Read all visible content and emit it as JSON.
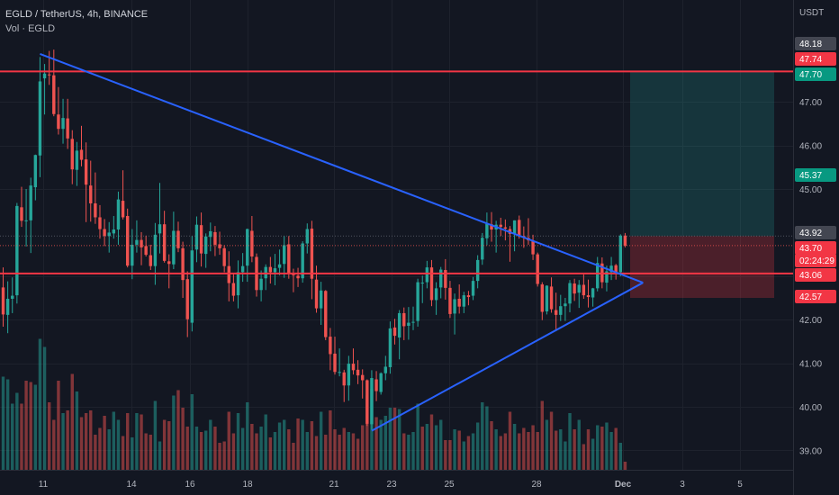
{
  "header": {
    "title": "EGLD / TetherUS, 4h, BINANCE",
    "volume_label": "Vol · EGLD"
  },
  "colors": {
    "background": "#131722",
    "up": "#26a69a",
    "down": "#ef5350",
    "trendline": "#2962ff",
    "level": "#f23645",
    "grid": "#1e222d",
    "axis_text": "#b2b5be"
  },
  "chart_data": {
    "type": "candlestick",
    "currency": "USDT",
    "y_ticks": [
      "39.00",
      "40.00",
      "41.00",
      "42.00",
      "43.00",
      "45.00",
      "46.00",
      "47.00"
    ],
    "x_ticks": [
      "11",
      "14",
      "16",
      "18",
      "21",
      "23",
      "25",
      "28",
      "Dec",
      "3",
      "5"
    ],
    "price_labels": [
      {
        "value": "48.18",
        "style": "gray"
      },
      {
        "value": "47.74",
        "style": "red"
      },
      {
        "value": "47.70",
        "style": "green"
      },
      {
        "value": "45.37",
        "style": "green"
      },
      {
        "value": "43.92",
        "style": "gray"
      },
      {
        "value": "43.70",
        "style": "red"
      },
      {
        "value": "02:24:29",
        "style": "red"
      },
      {
        "value": "43.06",
        "style": "red"
      },
      {
        "value": "42.57",
        "style": "red"
      }
    ],
    "horizontal_levels": [
      47.7,
      43.06
    ],
    "triangle": {
      "upper_start": {
        "date": "Nov 11",
        "price": 48.1
      },
      "lower_start": {
        "date": "Nov 22",
        "price": 39.45
      },
      "apex": {
        "date": "Dec 1",
        "price": 42.85
      }
    },
    "position": {
      "entry": 43.92,
      "target": 47.7,
      "stop": 42.5
    },
    "ohlc": [
      [
        42.74,
        43.2,
        41.84,
        42.12
      ],
      [
        42.11,
        42.88,
        41.69,
        42.48
      ],
      [
        42.48,
        42.97,
        42.15,
        42.55
      ],
      [
        42.56,
        44.68,
        42.37,
        44.61
      ],
      [
        44.58,
        45.05,
        44.13,
        44.27
      ],
      [
        44.26,
        45.0,
        43.68,
        44.28
      ],
      [
        44.28,
        45.26,
        43.53,
        45.08
      ],
      [
        45.04,
        45.79,
        44.74,
        45.78
      ],
      [
        45.77,
        48.03,
        45.27,
        47.47
      ],
      [
        47.54,
        47.87,
        46.71,
        47.65
      ],
      [
        47.63,
        48.17,
        47.39,
        47.61
      ],
      [
        47.61,
        48.2,
        46.67,
        46.72
      ],
      [
        46.71,
        47.34,
        46.25,
        46.38
      ],
      [
        46.38,
        47.07,
        46.04,
        46.63
      ],
      [
        46.62,
        47.07,
        45.92,
        46.16
      ],
      [
        46.15,
        46.35,
        45.11,
        45.45
      ],
      [
        45.44,
        46.08,
        45.07,
        45.88
      ],
      [
        45.9,
        46.45,
        45.52,
        45.67
      ],
      [
        45.68,
        46.07,
        44.24,
        45.1
      ],
      [
        45.08,
        45.65,
        44.25,
        44.67
      ],
      [
        44.67,
        45.38,
        44.2,
        44.35
      ],
      [
        44.35,
        44.63,
        43.86,
        44.08
      ],
      [
        44.08,
        44.31,
        43.69,
        43.92
      ],
      [
        43.92,
        44.24,
        43.54,
        44.0
      ],
      [
        43.98,
        44.38,
        43.86,
        44.07
      ],
      [
        44.07,
        44.94,
        43.72,
        44.76
      ],
      [
        44.73,
        45.43,
        44.3,
        44.35
      ],
      [
        44.38,
        44.55,
        43.2,
        43.24
      ],
      [
        43.24,
        44.08,
        42.93,
        43.72
      ],
      [
        43.72,
        44.28,
        43.54,
        43.83
      ],
      [
        43.83,
        44.01,
        43.25,
        43.66
      ],
      [
        43.69,
        43.93,
        43.45,
        43.49
      ],
      [
        43.48,
        43.72,
        43.14,
        43.23
      ],
      [
        43.23,
        44.22,
        42.8,
        43.95
      ],
      [
        43.98,
        45.14,
        43.52,
        44.19
      ],
      [
        44.19,
        44.5,
        43.31,
        43.35
      ],
      [
        43.34,
        43.5,
        42.72,
        43.28
      ],
      [
        43.27,
        44.48,
        43.16,
        44.04
      ],
      [
        44.04,
        44.25,
        43.55,
        43.64
      ],
      [
        43.64,
        43.79,
        42.5,
        42.91
      ],
      [
        42.93,
        43.11,
        41.6,
        42.01
      ],
      [
        41.93,
        43.92,
        41.73,
        43.59
      ],
      [
        43.61,
        44.37,
        43.32,
        44.18
      ],
      [
        44.17,
        44.46,
        43.22,
        43.52
      ],
      [
        43.51,
        43.98,
        43.19,
        43.91
      ],
      [
        43.9,
        44.23,
        43.57,
        44.03
      ],
      [
        44.01,
        44.15,
        43.46,
        43.72
      ],
      [
        43.73,
        44.02,
        43.49,
        43.64
      ],
      [
        43.64,
        43.71,
        43.09,
        43.23
      ],
      [
        43.23,
        43.57,
        42.42,
        42.84
      ],
      [
        42.84,
        43.06,
        42.42,
        42.55
      ],
      [
        42.56,
        43.36,
        42.26,
        43.09
      ],
      [
        43.09,
        43.53,
        42.87,
        43.23
      ],
      [
        43.24,
        44.09,
        42.87,
        44.08
      ],
      [
        44.04,
        44.38,
        43.32,
        43.45
      ],
      [
        43.44,
        43.52,
        42.53,
        42.68
      ],
      [
        42.68,
        43.13,
        42.42,
        42.94
      ],
      [
        42.95,
        43.27,
        42.68,
        43.21
      ],
      [
        43.21,
        43.44,
        42.83,
        43.09
      ],
      [
        43.09,
        43.51,
        42.79,
        43.18
      ],
      [
        43.19,
        43.61,
        43.02,
        43.27
      ],
      [
        43.28,
        43.92,
        42.96,
        43.71
      ],
      [
        43.73,
        43.92,
        42.94,
        43.05
      ],
      [
        43.04,
        43.17,
        42.63,
        43.03
      ],
      [
        43.01,
        43.19,
        42.75,
        42.95
      ],
      [
        42.95,
        43.8,
        42.85,
        43.75
      ],
      [
        43.75,
        44.21,
        43.52,
        44.08
      ],
      [
        44.09,
        44.27,
        42.47,
        42.94
      ],
      [
        42.92,
        43.24,
        42.16,
        42.26
      ],
      [
        42.26,
        42.87,
        41.88,
        42.67
      ],
      [
        42.66,
        42.68,
        41.53,
        41.6
      ],
      [
        41.61,
        41.81,
        40.84,
        41.21
      ],
      [
        41.22,
        41.61,
        40.74,
        40.8
      ],
      [
        40.8,
        41.34,
        40.7,
        40.8
      ],
      [
        40.79,
        40.85,
        40.11,
        40.49
      ],
      [
        40.49,
        41.17,
        40.14,
        40.99
      ],
      [
        40.99,
        41.34,
        40.74,
        40.84
      ],
      [
        40.85,
        41.07,
        40.52,
        40.72
      ],
      [
        40.73,
        40.86,
        40.19,
        40.61
      ],
      [
        40.61,
        40.63,
        39.56,
        39.61
      ],
      [
        39.6,
        40.84,
        39.47,
        40.66
      ],
      [
        40.63,
        40.82,
        40.13,
        40.36
      ],
      [
        40.34,
        40.79,
        40.28,
        40.77
      ],
      [
        40.77,
        41.17,
        40.61,
        40.92
      ],
      [
        40.91,
        41.96,
        40.76,
        41.8
      ],
      [
        41.82,
        42.02,
        41.43,
        41.63
      ],
      [
        41.59,
        42.22,
        41.09,
        42.15
      ],
      [
        42.15,
        42.28,
        41.53,
        41.85
      ],
      [
        41.86,
        42.29,
        41.54,
        41.93
      ],
      [
        41.93,
        42.3,
        41.76,
        41.95
      ],
      [
        41.97,
        42.94,
        41.84,
        42.86
      ],
      [
        42.85,
        43.01,
        42.38,
        42.85
      ],
      [
        42.86,
        43.35,
        42.72,
        43.2
      ],
      [
        43.2,
        43.37,
        42.31,
        42.45
      ],
      [
        42.45,
        42.86,
        42.11,
        42.72
      ],
      [
        42.74,
        43.21,
        42.49,
        43.15
      ],
      [
        43.14,
        43.39,
        42.46,
        42.73
      ],
      [
        42.73,
        42.89,
        42.04,
        42.13
      ],
      [
        42.14,
        42.6,
        41.66,
        42.47
      ],
      [
        42.48,
        42.81,
        42.14,
        42.3
      ],
      [
        42.3,
        42.64,
        42.15,
        42.56
      ],
      [
        42.56,
        42.66,
        42.33,
        42.52
      ],
      [
        42.55,
        42.98,
        42.45,
        42.89
      ],
      [
        42.89,
        43.48,
        42.72,
        43.37
      ],
      [
        43.38,
        43.99,
        43.26,
        43.88
      ],
      [
        43.87,
        44.46,
        43.71,
        44.2
      ],
      [
        44.19,
        44.47,
        43.79,
        44.07
      ],
      [
        44.07,
        44.27,
        43.54,
        44.18
      ],
      [
        44.18,
        44.34,
        43.92,
        44.13
      ],
      [
        44.12,
        44.3,
        43.82,
        44.09
      ],
      [
        44.08,
        44.15,
        43.33,
        43.97
      ],
      [
        43.97,
        44.28,
        43.57,
        44.28
      ],
      [
        44.29,
        44.39,
        43.86,
        43.91
      ],
      [
        43.92,
        44.14,
        43.65,
        43.89
      ],
      [
        43.88,
        44.33,
        43.72,
        43.82
      ],
      [
        43.81,
        43.95,
        43.37,
        43.5
      ],
      [
        43.5,
        43.54,
        42.76,
        42.82
      ],
      [
        42.81,
        42.86,
        41.99,
        42.18
      ],
      [
        42.19,
        42.79,
        42.12,
        42.78
      ],
      [
        42.76,
        42.97,
        42.16,
        42.24
      ],
      [
        42.22,
        42.62,
        41.74,
        42.11
      ],
      [
        42.11,
        42.57,
        41.97,
        42.31
      ],
      [
        42.31,
        42.5,
        41.97,
        42.37
      ],
      [
        42.37,
        42.91,
        42.17,
        42.84
      ],
      [
        42.83,
        42.94,
        42.43,
        42.6
      ],
      [
        42.62,
        42.91,
        42.27,
        42.8
      ],
      [
        42.8,
        43.04,
        42.48,
        42.56
      ],
      [
        42.56,
        42.92,
        42.28,
        42.52
      ],
      [
        42.51,
        42.73,
        42.3,
        42.72
      ],
      [
        42.72,
        43.44,
        42.65,
        43.3
      ],
      [
        43.29,
        43.43,
        42.72,
        42.86
      ],
      [
        42.85,
        43.24,
        42.65,
        43.11
      ],
      [
        43.09,
        43.44,
        42.91,
        43.24
      ],
      [
        43.25,
        43.28,
        42.92,
        43.09
      ],
      [
        43.09,
        43.96,
        43.0,
        43.93
      ],
      [
        43.93,
        43.99,
        43.66,
        43.7
      ]
    ],
    "volume": [
      [
        0.69,
        1
      ],
      [
        0.67,
        1
      ],
      [
        0.49,
        1
      ],
      [
        0.57,
        1
      ],
      [
        0.49,
        0
      ],
      [
        0.66,
        0
      ],
      [
        0.65,
        0
      ],
      [
        0.63,
        1
      ],
      [
        0.97,
        1
      ],
      [
        0.91,
        1
      ],
      [
        0.5,
        0
      ],
      [
        0.37,
        0
      ],
      [
        0.66,
        0
      ],
      [
        0.42,
        1
      ],
      [
        0.44,
        0
      ],
      [
        0.71,
        0
      ],
      [
        0.58,
        1
      ],
      [
        0.39,
        0
      ],
      [
        0.42,
        0
      ],
      [
        0.44,
        0
      ],
      [
        0.26,
        0
      ],
      [
        0.31,
        0
      ],
      [
        0.4,
        0
      ],
      [
        0.3,
        1
      ],
      [
        0.43,
        1
      ],
      [
        0.37,
        1
      ],
      [
        0.25,
        0
      ],
      [
        0.42,
        0
      ],
      [
        0.24,
        1
      ],
      [
        0.42,
        1
      ],
      [
        0.41,
        0
      ],
      [
        0.27,
        0
      ],
      [
        0.26,
        0
      ],
      [
        0.51,
        1
      ],
      [
        0.21,
        1
      ],
      [
        0.37,
        0
      ],
      [
        0.36,
        0
      ],
      [
        0.55,
        1
      ],
      [
        0.59,
        0
      ],
      [
        0.46,
        0
      ],
      [
        0.32,
        0
      ],
      [
        0.56,
        1
      ],
      [
        0.32,
        1
      ],
      [
        0.28,
        0
      ],
      [
        0.29,
        1
      ],
      [
        0.37,
        1
      ],
      [
        0.32,
        0
      ],
      [
        0.2,
        0
      ],
      [
        0.21,
        0
      ],
      [
        0.43,
        0
      ],
      [
        0.27,
        0
      ],
      [
        0.42,
        1
      ],
      [
        0.31,
        1
      ],
      [
        0.5,
        1
      ],
      [
        0.34,
        0
      ],
      [
        0.27,
        0
      ],
      [
        0.32,
        1
      ],
      [
        0.41,
        1
      ],
      [
        0.24,
        0
      ],
      [
        0.28,
        1
      ],
      [
        0.35,
        1
      ],
      [
        0.37,
        1
      ],
      [
        0.3,
        0
      ],
      [
        0.2,
        0
      ],
      [
        0.38,
        0
      ],
      [
        0.37,
        1
      ],
      [
        0.28,
        1
      ],
      [
        0.36,
        0
      ],
      [
        0.25,
        0
      ],
      [
        0.43,
        1
      ],
      [
        0.26,
        0
      ],
      [
        0.44,
        0
      ],
      [
        0.3,
        0
      ],
      [
        0.26,
        0
      ],
      [
        0.31,
        0
      ],
      [
        0.28,
        1
      ],
      [
        0.27,
        0
      ],
      [
        0.23,
        0
      ],
      [
        0.33,
        0
      ],
      [
        0.55,
        0
      ],
      [
        0.6,
        1
      ],
      [
        0.39,
        0
      ],
      [
        0.37,
        1
      ],
      [
        0.4,
        1
      ],
      [
        0.46,
        1
      ],
      [
        0.46,
        0
      ],
      [
        0.45,
        1
      ],
      [
        0.27,
        0
      ],
      [
        0.26,
        1
      ],
      [
        0.28,
        1
      ],
      [
        0.49,
        1
      ],
      [
        0.32,
        0
      ],
      [
        0.34,
        1
      ],
      [
        0.41,
        0
      ],
      [
        0.33,
        1
      ],
      [
        0.37,
        1
      ],
      [
        0.22,
        0
      ],
      [
        0.22,
        0
      ],
      [
        0.3,
        1
      ],
      [
        0.29,
        0
      ],
      [
        0.21,
        1
      ],
      [
        0.25,
        0
      ],
      [
        0.27,
        1
      ],
      [
        0.35,
        1
      ],
      [
        0.5,
        1
      ],
      [
        0.47,
        1
      ],
      [
        0.36,
        0
      ],
      [
        0.3,
        1
      ],
      [
        0.25,
        0
      ],
      [
        0.27,
        0
      ],
      [
        0.43,
        0
      ],
      [
        0.34,
        1
      ],
      [
        0.27,
        0
      ],
      [
        0.31,
        0
      ],
      [
        0.28,
        0
      ],
      [
        0.33,
        0
      ],
      [
        0.28,
        0
      ],
      [
        0.51,
        0
      ],
      [
        0.37,
        1
      ],
      [
        0.43,
        0
      ],
      [
        0.29,
        0
      ],
      [
        0.3,
        1
      ],
      [
        0.21,
        1
      ],
      [
        0.42,
        1
      ],
      [
        0.3,
        0
      ],
      [
        0.37,
        1
      ],
      [
        0.19,
        0
      ],
      [
        0.3,
        0
      ],
      [
        0.23,
        1
      ],
      [
        0.33,
        1
      ],
      [
        0.32,
        0
      ],
      [
        0.35,
        1
      ],
      [
        0.28,
        1
      ],
      [
        0.31,
        0
      ],
      [
        0.2,
        1
      ],
      [
        0.06,
        0
      ]
    ]
  }
}
